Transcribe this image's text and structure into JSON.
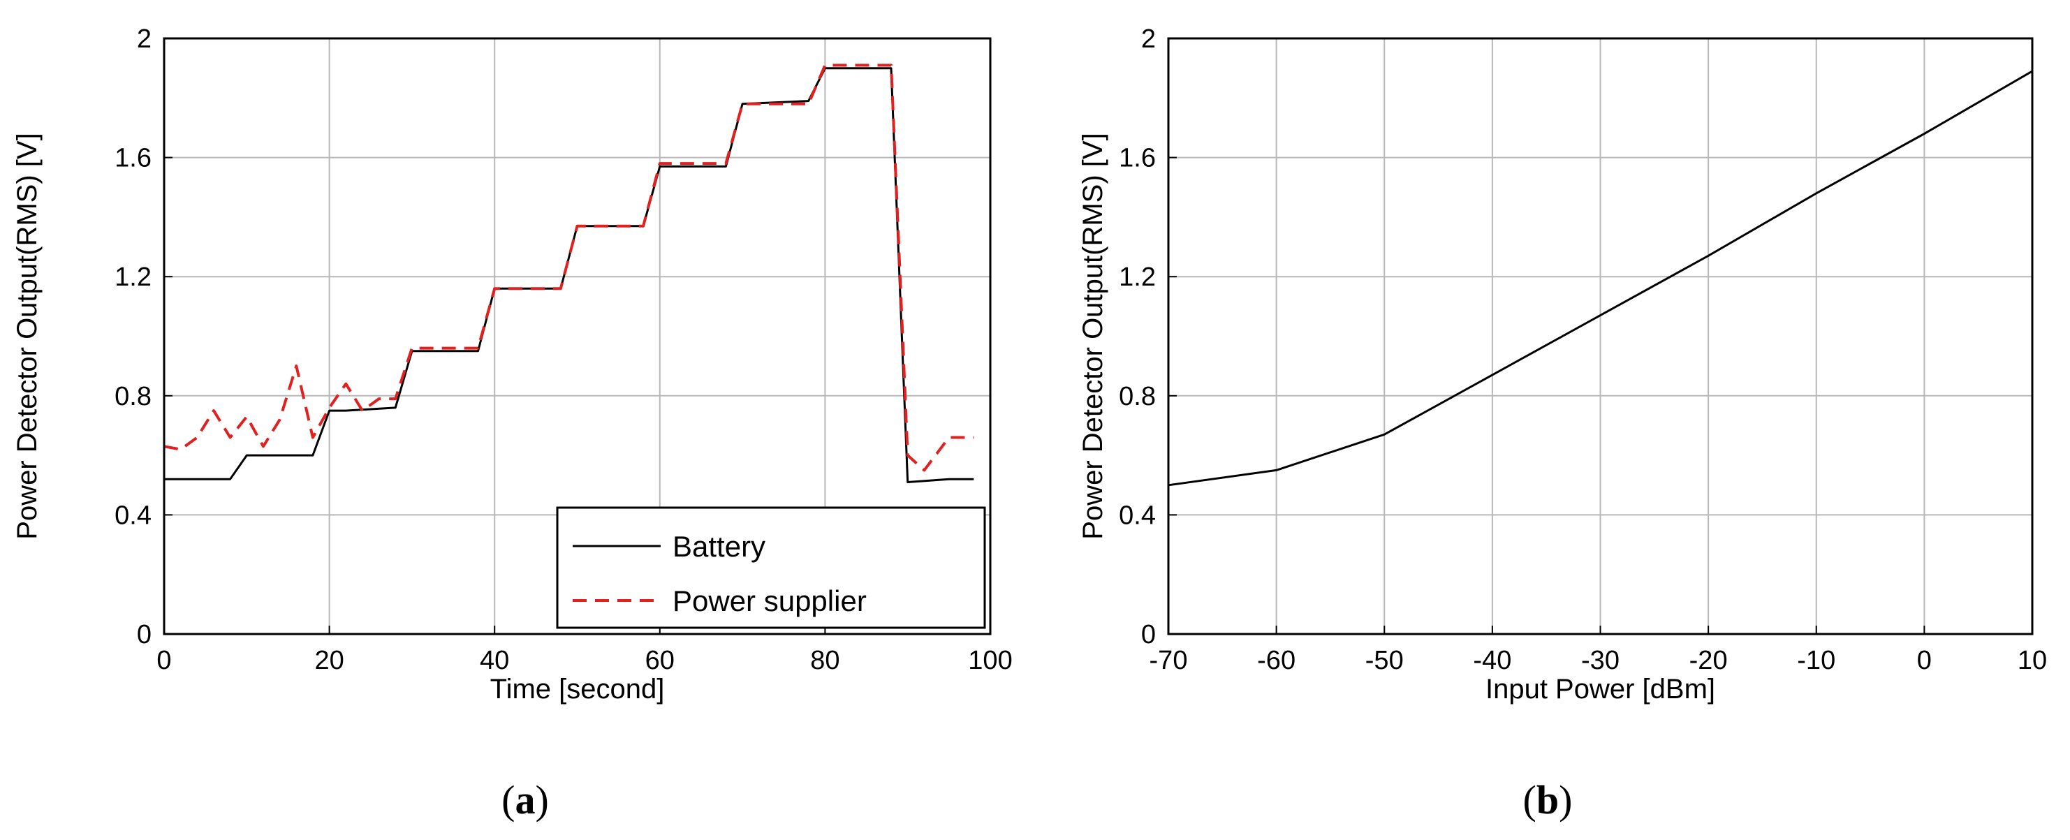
{
  "chart_data": [
    {
      "type": "line",
      "panel_label": "a",
      "xlabel": "Time [second]",
      "ylabel": "Power Detector Output(RMS) [V]",
      "xlim": [
        0,
        100
      ],
      "ylim": [
        0,
        2
      ],
      "xticks": [
        "0",
        "20",
        "40",
        "60",
        "80",
        "100"
      ],
      "yticks": [
        "0",
        "0.4",
        "0.8",
        "1.2",
        "1.6",
        "2"
      ],
      "grid": true,
      "legend_position": "bottom-right",
      "series": [
        {
          "name": "Battery",
          "color": "#000000",
          "style": "solid",
          "x": [
            0,
            2,
            8,
            10,
            18,
            20,
            22,
            28,
            30,
            38,
            40,
            48,
            50,
            58,
            60,
            68,
            70,
            78,
            80,
            88,
            90,
            95,
            98
          ],
          "y": [
            0.52,
            0.52,
            0.52,
            0.6,
            0.6,
            0.75,
            0.75,
            0.76,
            0.95,
            0.95,
            1.16,
            1.16,
            1.37,
            1.37,
            1.57,
            1.57,
            1.78,
            1.79,
            1.9,
            1.9,
            0.51,
            0.52,
            0.52
          ]
        },
        {
          "name": "Power supplier",
          "color": "#e0211f",
          "style": "dashed",
          "x": [
            0,
            2,
            4,
            6,
            8,
            10,
            12,
            14,
            16,
            18,
            20,
            22,
            24,
            26,
            28,
            30,
            38,
            40,
            48,
            50,
            58,
            60,
            68,
            70,
            78,
            80,
            88,
            90,
            92,
            95,
            98
          ],
          "y": [
            0.63,
            0.62,
            0.66,
            0.75,
            0.66,
            0.73,
            0.63,
            0.72,
            0.9,
            0.66,
            0.76,
            0.84,
            0.75,
            0.79,
            0.79,
            0.96,
            0.96,
            1.16,
            1.16,
            1.37,
            1.37,
            1.58,
            1.58,
            1.78,
            1.78,
            1.91,
            1.91,
            0.6,
            0.55,
            0.66,
            0.66
          ]
        }
      ]
    },
    {
      "type": "line",
      "panel_label": "b",
      "xlabel": "Input Power [dBm]",
      "ylabel": "Power Detector Output(RMS) [V]",
      "xlim": [
        -70,
        10
      ],
      "ylim": [
        0,
        2
      ],
      "xticks": [
        "-70",
        "-60",
        "-50",
        "-40",
        "-30",
        "-20",
        "-10",
        "0",
        "10"
      ],
      "yticks": [
        "0",
        "0.4",
        "0.8",
        "1.2",
        "1.6",
        "2"
      ],
      "grid": true,
      "series": [
        {
          "color": "#000000",
          "style": "solid",
          "x": [
            -70,
            -60,
            -50,
            -40,
            -30,
            -20,
            -10,
            0,
            10
          ],
          "y": [
            0.5,
            0.55,
            0.67,
            0.87,
            1.07,
            1.27,
            1.48,
            1.68,
            1.89
          ]
        }
      ]
    }
  ]
}
